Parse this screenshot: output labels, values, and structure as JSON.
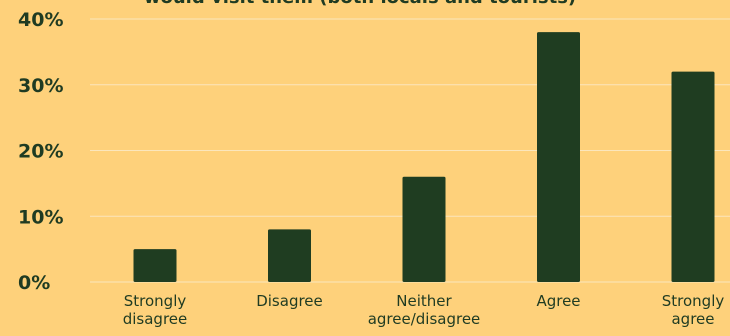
{
  "chart_data": {
    "type": "bar",
    "title": "would visit them (both locals and tourists)",
    "categories": [
      [
        "Strongly",
        "disagree"
      ],
      [
        "Disagree"
      ],
      [
        "Neither",
        "agree/disagree"
      ],
      [
        "Agree"
      ],
      [
        "Strongly",
        "agree"
      ]
    ],
    "values": [
      5,
      8,
      16,
      38,
      32
    ],
    "ylim": [
      0,
      40
    ],
    "yticks": [
      0,
      10,
      20,
      30,
      40
    ],
    "ytick_labels": [
      "0%",
      "10%",
      "20%",
      "30%",
      "40%"
    ],
    "grid": true,
    "colors": {
      "background": "#fed17b",
      "bar": "#1f3d21",
      "text": "#1f3b22",
      "grid": "#fbe6bc"
    }
  }
}
